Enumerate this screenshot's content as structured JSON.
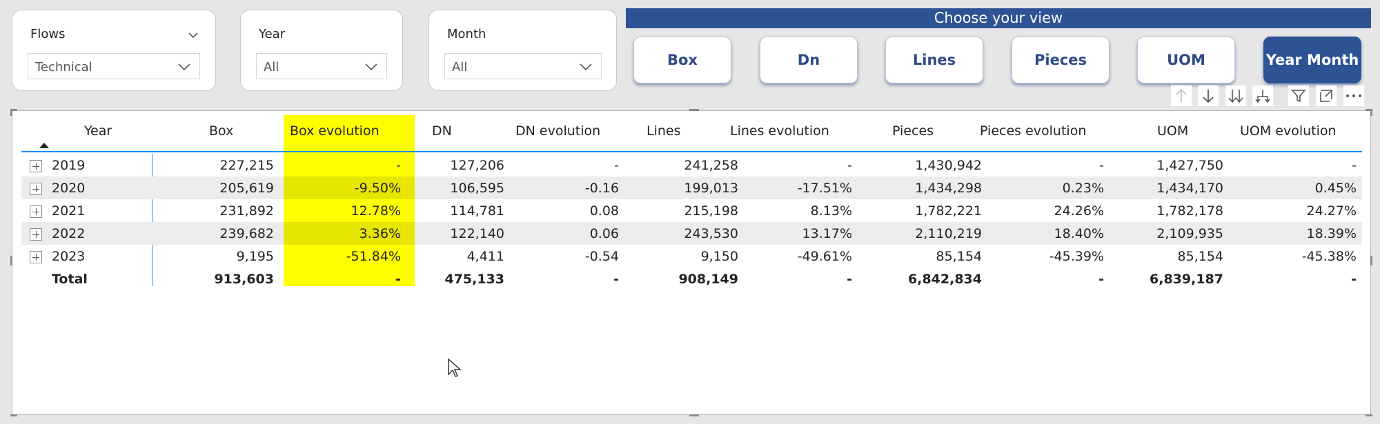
{
  "slicers": [
    {
      "title": "Flows",
      "value": "Technical"
    },
    {
      "title": "Year",
      "value": "All"
    },
    {
      "title": "Month",
      "value": "All"
    }
  ],
  "view": {
    "header": "Choose your view",
    "buttons": [
      "Box",
      "Dn",
      "Lines",
      "Pieces",
      "UOM",
      "Year Month"
    ],
    "active": "Year Month"
  },
  "table": {
    "headers": [
      "Year",
      "Box",
      "Box evolution",
      "DN",
      "DN evolution",
      "Lines",
      "Lines evolution",
      "Pieces",
      "Pieces evolution",
      "UOM",
      "UOM evolution"
    ],
    "rows": [
      [
        "2019",
        "227,215",
        "-",
        "127,206",
        "-",
        "241,258",
        "-",
        "1,430,942",
        "-",
        "1,427,750",
        "-"
      ],
      [
        "2020",
        "205,619",
        "-9.50%",
        "106,595",
        "-0.16",
        "199,013",
        "-17.51%",
        "1,434,298",
        "0.23%",
        "1,434,170",
        "0.45%"
      ],
      [
        "2021",
        "231,892",
        "12.78%",
        "114,781",
        "0.08",
        "215,198",
        "8.13%",
        "1,782,221",
        "24.26%",
        "1,782,178",
        "24.27%"
      ],
      [
        "2022",
        "239,682",
        "3.36%",
        "122,140",
        "0.06",
        "243,530",
        "13.17%",
        "2,110,219",
        "18.40%",
        "2,109,935",
        "18.39%"
      ],
      [
        "2023",
        "9,195",
        "-51.84%",
        "4,411",
        "-0.54",
        "9,150",
        "-49.61%",
        "85,154",
        "-45.39%",
        "85,154",
        "-45.38%"
      ]
    ],
    "total": [
      "Total",
      "913,603",
      "-",
      "475,133",
      "-",
      "908,149",
      "-",
      "6,842,834",
      "-",
      "6,839,187",
      "-"
    ]
  },
  "colors": {
    "accent": "#2e5394",
    "highlight": "#ffff00"
  },
  "toolbar_icons": [
    "arrow-up-icon",
    "arrow-down-icon",
    "double-arrow-down-icon",
    "expand-hierarchy-icon",
    "filter-icon",
    "focus-mode-icon",
    "more-options-icon"
  ]
}
